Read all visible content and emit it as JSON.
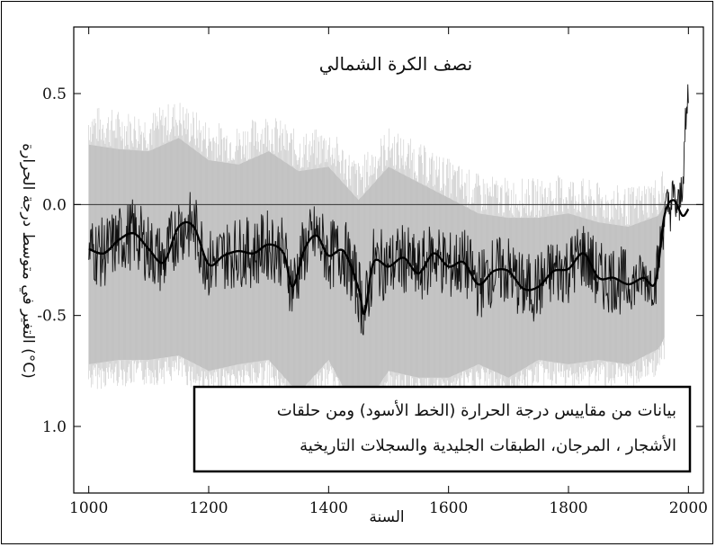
{
  "chart_data": {
    "type": "line",
    "title": "نصف الكرة الشمالي",
    "xlabel": "السنة",
    "ylabel": "التغير في متوسط درجة الحرارة (°C)",
    "x_ticks": [
      "1000",
      "1200",
      "1400",
      "1600",
      "1800",
      "2000"
    ],
    "y_ticks": [
      "0.5",
      "0.0",
      "-0.5",
      "1.0"
    ],
    "xlim": [
      975,
      2025
    ],
    "ylim": [
      -1.3,
      0.8
    ],
    "zero_line": true,
    "annotation_lines": [
      "بيانات من مقاييس درجة الحرارة (الخط الأسود) ومن حلقات",
      "الأشجار ، المرجان، الطبقات الجليدية والسجلات التاريخية"
    ],
    "colors": {
      "uncertainty": "#b8b8b8",
      "line": "#111111",
      "smooth": "#000000"
    },
    "smooth_series": {
      "x": [
        1000,
        1025,
        1050,
        1075,
        1100,
        1125,
        1150,
        1175,
        1200,
        1225,
        1250,
        1275,
        1300,
        1325,
        1340,
        1360,
        1380,
        1400,
        1425,
        1450,
        1460,
        1475,
        1500,
        1525,
        1550,
        1575,
        1600,
        1625,
        1650,
        1675,
        1700,
        1725,
        1750,
        1775,
        1800,
        1825,
        1850,
        1875,
        1900,
        1925,
        1945,
        1960,
        1975,
        1990,
        2000
      ],
      "y": [
        -0.2,
        -0.22,
        -0.16,
        -0.13,
        -0.2,
        -0.26,
        -0.1,
        -0.1,
        -0.27,
        -0.23,
        -0.21,
        -0.22,
        -0.18,
        -0.22,
        -0.37,
        -0.2,
        -0.14,
        -0.23,
        -0.21,
        -0.38,
        -0.49,
        -0.26,
        -0.28,
        -0.24,
        -0.31,
        -0.22,
        -0.28,
        -0.26,
        -0.36,
        -0.3,
        -0.3,
        -0.38,
        -0.37,
        -0.3,
        -0.29,
        -0.22,
        -0.33,
        -0.33,
        -0.36,
        -0.33,
        -0.35,
        -0.05,
        0.02,
        -0.05,
        -0.02
      ]
    },
    "uncertainty_band": {
      "x": [
        1000,
        1050,
        1100,
        1150,
        1200,
        1250,
        1300,
        1350,
        1400,
        1450,
        1500,
        1550,
        1600,
        1650,
        1700,
        1750,
        1800,
        1850,
        1900,
        1950,
        1960
      ],
      "upper": [
        0.27,
        0.25,
        0.24,
        0.3,
        0.2,
        0.18,
        0.24,
        0.15,
        0.17,
        0.02,
        0.17,
        0.1,
        0.03,
        -0.04,
        -0.06,
        -0.06,
        -0.04,
        -0.08,
        -0.1,
        -0.05,
        0.0
      ],
      "lower": [
        -0.72,
        -0.7,
        -0.7,
        -0.68,
        -0.75,
        -0.72,
        -0.7,
        -0.85,
        -0.7,
        -0.95,
        -0.75,
        -0.78,
        -0.78,
        -0.72,
        -0.78,
        -0.7,
        -0.72,
        -0.7,
        -0.72,
        -0.65,
        -0.6
      ]
    }
  }
}
